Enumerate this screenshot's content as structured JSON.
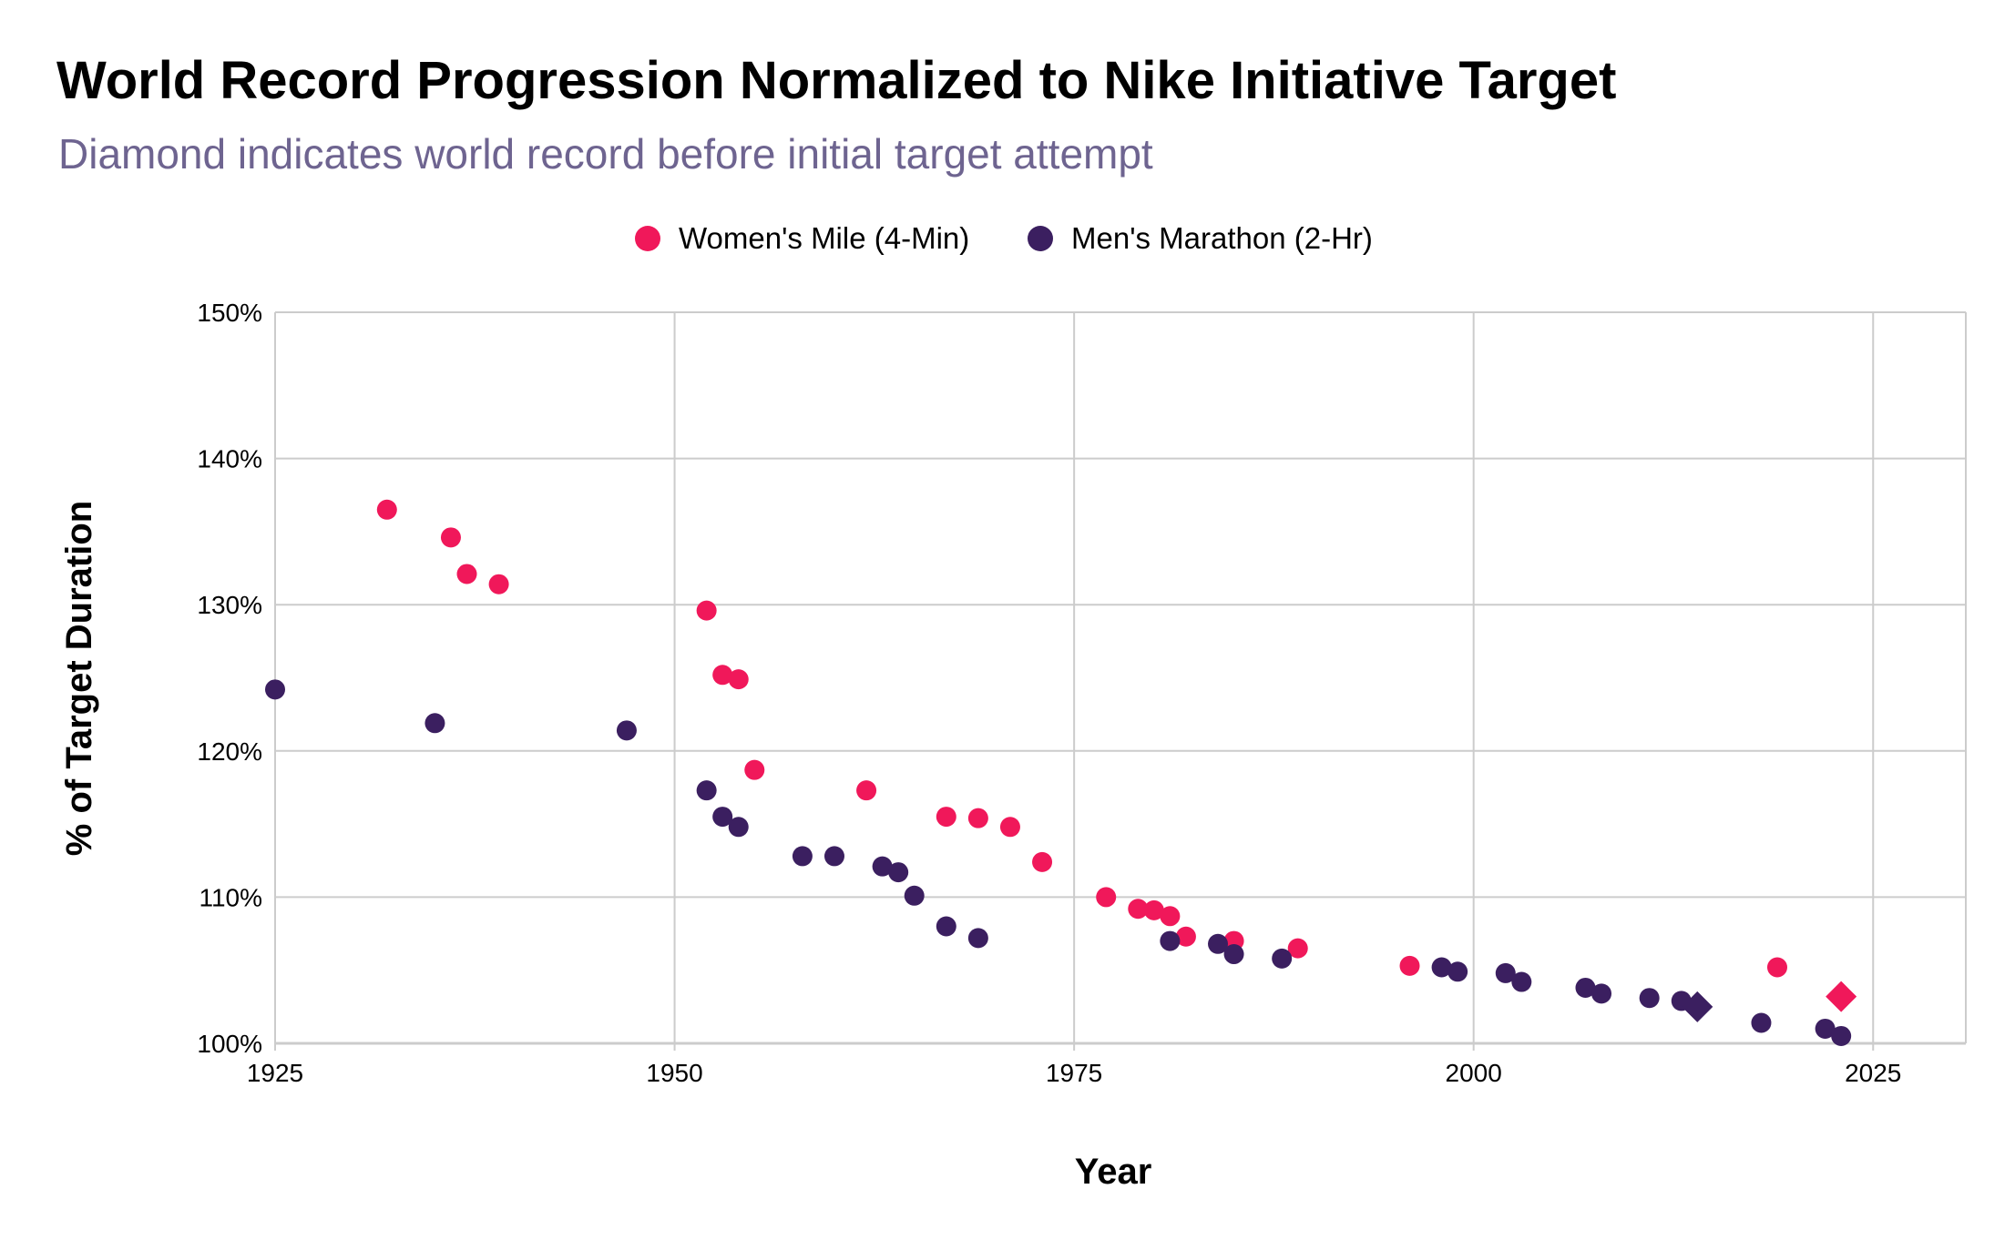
{
  "colors": {
    "women": "#F0185A",
    "men": "#3B1F60",
    "subtitle": "#6E6490",
    "grid": "#CCCCCC"
  },
  "chart_data": {
    "type": "scatter",
    "title": "World Record Progression Normalized to Nike Initiative Target",
    "subtitle": "Diamond indicates world record before initial target attempt",
    "xlabel": "Year",
    "ylabel": "% of Target Duration",
    "xlim": [
      1925,
      2030.8
    ],
    "ylim": [
      100,
      150
    ],
    "xticks": [
      1925,
      1950,
      1975,
      2000,
      2025
    ],
    "xtick_labels": [
      "1925",
      "1950",
      "1975",
      "2000",
      "2025"
    ],
    "yticks": [
      100,
      110,
      120,
      130,
      140,
      150
    ],
    "ytick_labels": [
      "100%",
      "110%",
      "120%",
      "130%",
      "140%",
      "150%"
    ],
    "grid": true,
    "legend_position": "top-center",
    "series": [
      {
        "name": "Women's Mile (4-Min)",
        "color": "#F0185A",
        "points": [
          [
            1932,
            136.5
          ],
          [
            1936,
            134.6
          ],
          [
            1937,
            132.1
          ],
          [
            1939,
            131.4
          ],
          [
            1952,
            129.6
          ],
          [
            1953,
            125.2
          ],
          [
            1954,
            124.9
          ],
          [
            1955,
            118.7
          ],
          [
            1962,
            117.3
          ],
          [
            1967,
            115.5
          ],
          [
            1969,
            115.4
          ],
          [
            1971,
            114.8
          ],
          [
            1973,
            112.4
          ],
          [
            1977,
            110.0
          ],
          [
            1979,
            109.2
          ],
          [
            1980,
            109.1
          ],
          [
            1981,
            108.7
          ],
          [
            1982,
            107.3
          ],
          [
            1985,
            107.0
          ],
          [
            1989,
            106.5
          ],
          [
            1996,
            105.3
          ],
          [
            2019,
            105.2
          ]
        ],
        "diamond": [
          2023,
          103.2
        ]
      },
      {
        "name": "Men's Marathon (2-Hr)",
        "color": "#3B1F60",
        "points": [
          [
            1925,
            124.2
          ],
          [
            1935,
            121.9
          ],
          [
            1947,
            121.4
          ],
          [
            1952,
            117.3
          ],
          [
            1953,
            115.5
          ],
          [
            1954,
            114.8
          ],
          [
            1958,
            112.8
          ],
          [
            1960,
            112.8
          ],
          [
            1963,
            112.1
          ],
          [
            1964,
            111.7
          ],
          [
            1965,
            110.1
          ],
          [
            1967,
            108.0
          ],
          [
            1969,
            107.2
          ],
          [
            1981,
            107.0
          ],
          [
            1984,
            106.8
          ],
          [
            1985,
            106.1
          ],
          [
            1988,
            105.8
          ],
          [
            1998,
            105.2
          ],
          [
            1999,
            104.9
          ],
          [
            2002,
            104.8
          ],
          [
            2003,
            104.2
          ],
          [
            2007,
            103.8
          ],
          [
            2008,
            103.4
          ],
          [
            2011,
            103.1
          ],
          [
            2013,
            102.9
          ],
          [
            2018,
            101.4
          ],
          [
            2022,
            101.0
          ],
          [
            2023,
            100.5
          ]
        ],
        "diamond": [
          2014,
          102.5
        ]
      }
    ]
  }
}
